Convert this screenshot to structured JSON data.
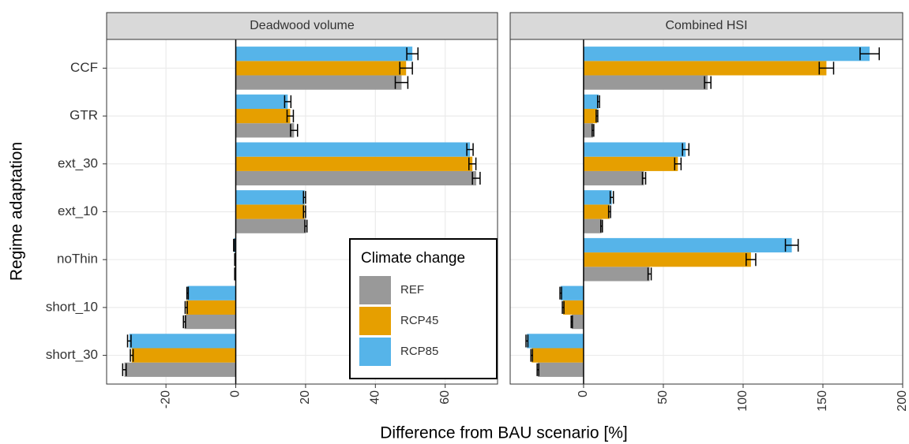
{
  "chart_data": [
    {
      "type": "bar",
      "orientation": "horizontal",
      "title": "Deadwood volume",
      "ylabel": "Regime adaptation",
      "xlabel": "Difference from BAU scenario [%]",
      "legend_title": "Climate change",
      "legend": "bottom-right",
      "grid": true,
      "categories": [
        "CCF",
        "GTR",
        "ext_30",
        "ext_10",
        "noThin",
        "short_10",
        "short_30"
      ],
      "series": [
        {
          "name": "REF",
          "color": "#999999",
          "values": [
            47.5,
            16.7,
            68.9,
            20.1,
            -0.2,
            -14.7,
            -31.9
          ],
          "errors": [
            1.8,
            1.0,
            1.1,
            0.3,
            0.1,
            0.3,
            0.5
          ]
        },
        {
          "name": "RCP45",
          "color": "#E69F00",
          "values": [
            48.8,
            15.6,
            67.8,
            19.7,
            -0.2,
            -14.2,
            -29.8
          ],
          "errors": [
            1.8,
            0.9,
            1.0,
            0.3,
            0.1,
            0.3,
            0.4
          ]
        },
        {
          "name": "RCP85",
          "color": "#56B4E9",
          "values": [
            50.6,
            14.9,
            67.1,
            19.7,
            -0.5,
            -13.8,
            -30.5
          ],
          "errors": [
            1.6,
            0.9,
            0.9,
            0.3,
            0.1,
            0.2,
            0.5
          ]
        }
      ],
      "xlim": [
        -37,
        75
      ],
      "xticks": [
        -20,
        0,
        20,
        40,
        60
      ]
    },
    {
      "type": "bar",
      "orientation": "horizontal",
      "title": "Combined HSI",
      "grid": true,
      "series": [
        {
          "color": "#999999",
          "values": [
            77.8,
            5.9,
            37.9,
            11.3,
            41.4,
            -7.4,
            -28.6
          ],
          "errors": [
            2,
            0.5,
            1,
            0.5,
            1,
            0.4,
            0.5
          ]
        },
        {
          "color": "#E69F00",
          "values": [
            152.2,
            8.4,
            59.1,
            16.3,
            104.9,
            -12.8,
            -32.5
          ],
          "errors": [
            4.5,
            0.5,
            2,
            0.6,
            3,
            0.5,
            0.5
          ]
        },
        {
          "color": "#56B4E9",
          "values": [
            179.3,
            9.4,
            64,
            17.7,
            130.5,
            -14.3,
            -35.5
          ],
          "errors": [
            6,
            0.6,
            2,
            1,
            4,
            0.5,
            0.6
          ]
        }
      ],
      "xlim": [
        -46,
        200
      ],
      "xticks": [
        0,
        50,
        100,
        150,
        200
      ]
    }
  ]
}
